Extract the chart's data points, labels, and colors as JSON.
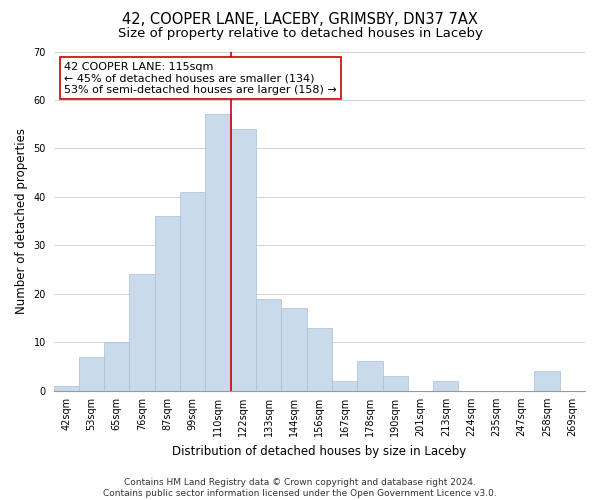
{
  "title": "42, COOPER LANE, LACEBY, GRIMSBY, DN37 7AX",
  "subtitle": "Size of property relative to detached houses in Laceby",
  "xlabel": "Distribution of detached houses by size in Laceby",
  "ylabel": "Number of detached properties",
  "bin_labels": [
    "42sqm",
    "53sqm",
    "65sqm",
    "76sqm",
    "87sqm",
    "99sqm",
    "110sqm",
    "122sqm",
    "133sqm",
    "144sqm",
    "156sqm",
    "167sqm",
    "178sqm",
    "190sqm",
    "201sqm",
    "213sqm",
    "224sqm",
    "235sqm",
    "247sqm",
    "258sqm",
    "269sqm"
  ],
  "bar_heights": [
    1,
    7,
    10,
    24,
    36,
    41,
    57,
    54,
    19,
    17,
    13,
    2,
    6,
    3,
    0,
    2,
    0,
    0,
    0,
    4,
    0
  ],
  "bar_color": "#c9daea",
  "bar_edge_color": "#a8c0d6",
  "highlight_line_color": "#cc0000",
  "annotation_text": "42 COOPER LANE: 115sqm\n← 45% of detached houses are smaller (134)\n53% of semi-detached houses are larger (158) →",
  "annotation_box_color": "#ffffff",
  "annotation_box_edge": "#cc0000",
  "ylim": [
    0,
    70
  ],
  "yticks": [
    0,
    10,
    20,
    30,
    40,
    50,
    60,
    70
  ],
  "footer_text": "Contains HM Land Registry data © Crown copyright and database right 2024.\nContains public sector information licensed under the Open Government Licence v3.0.",
  "background_color": "#ffffff",
  "plot_bg_color": "#ffffff",
  "grid_color": "#cccccc",
  "title_fontsize": 10.5,
  "subtitle_fontsize": 9.5,
  "axis_label_fontsize": 8.5,
  "tick_fontsize": 7,
  "annotation_fontsize": 8,
  "footer_fontsize": 6.5
}
